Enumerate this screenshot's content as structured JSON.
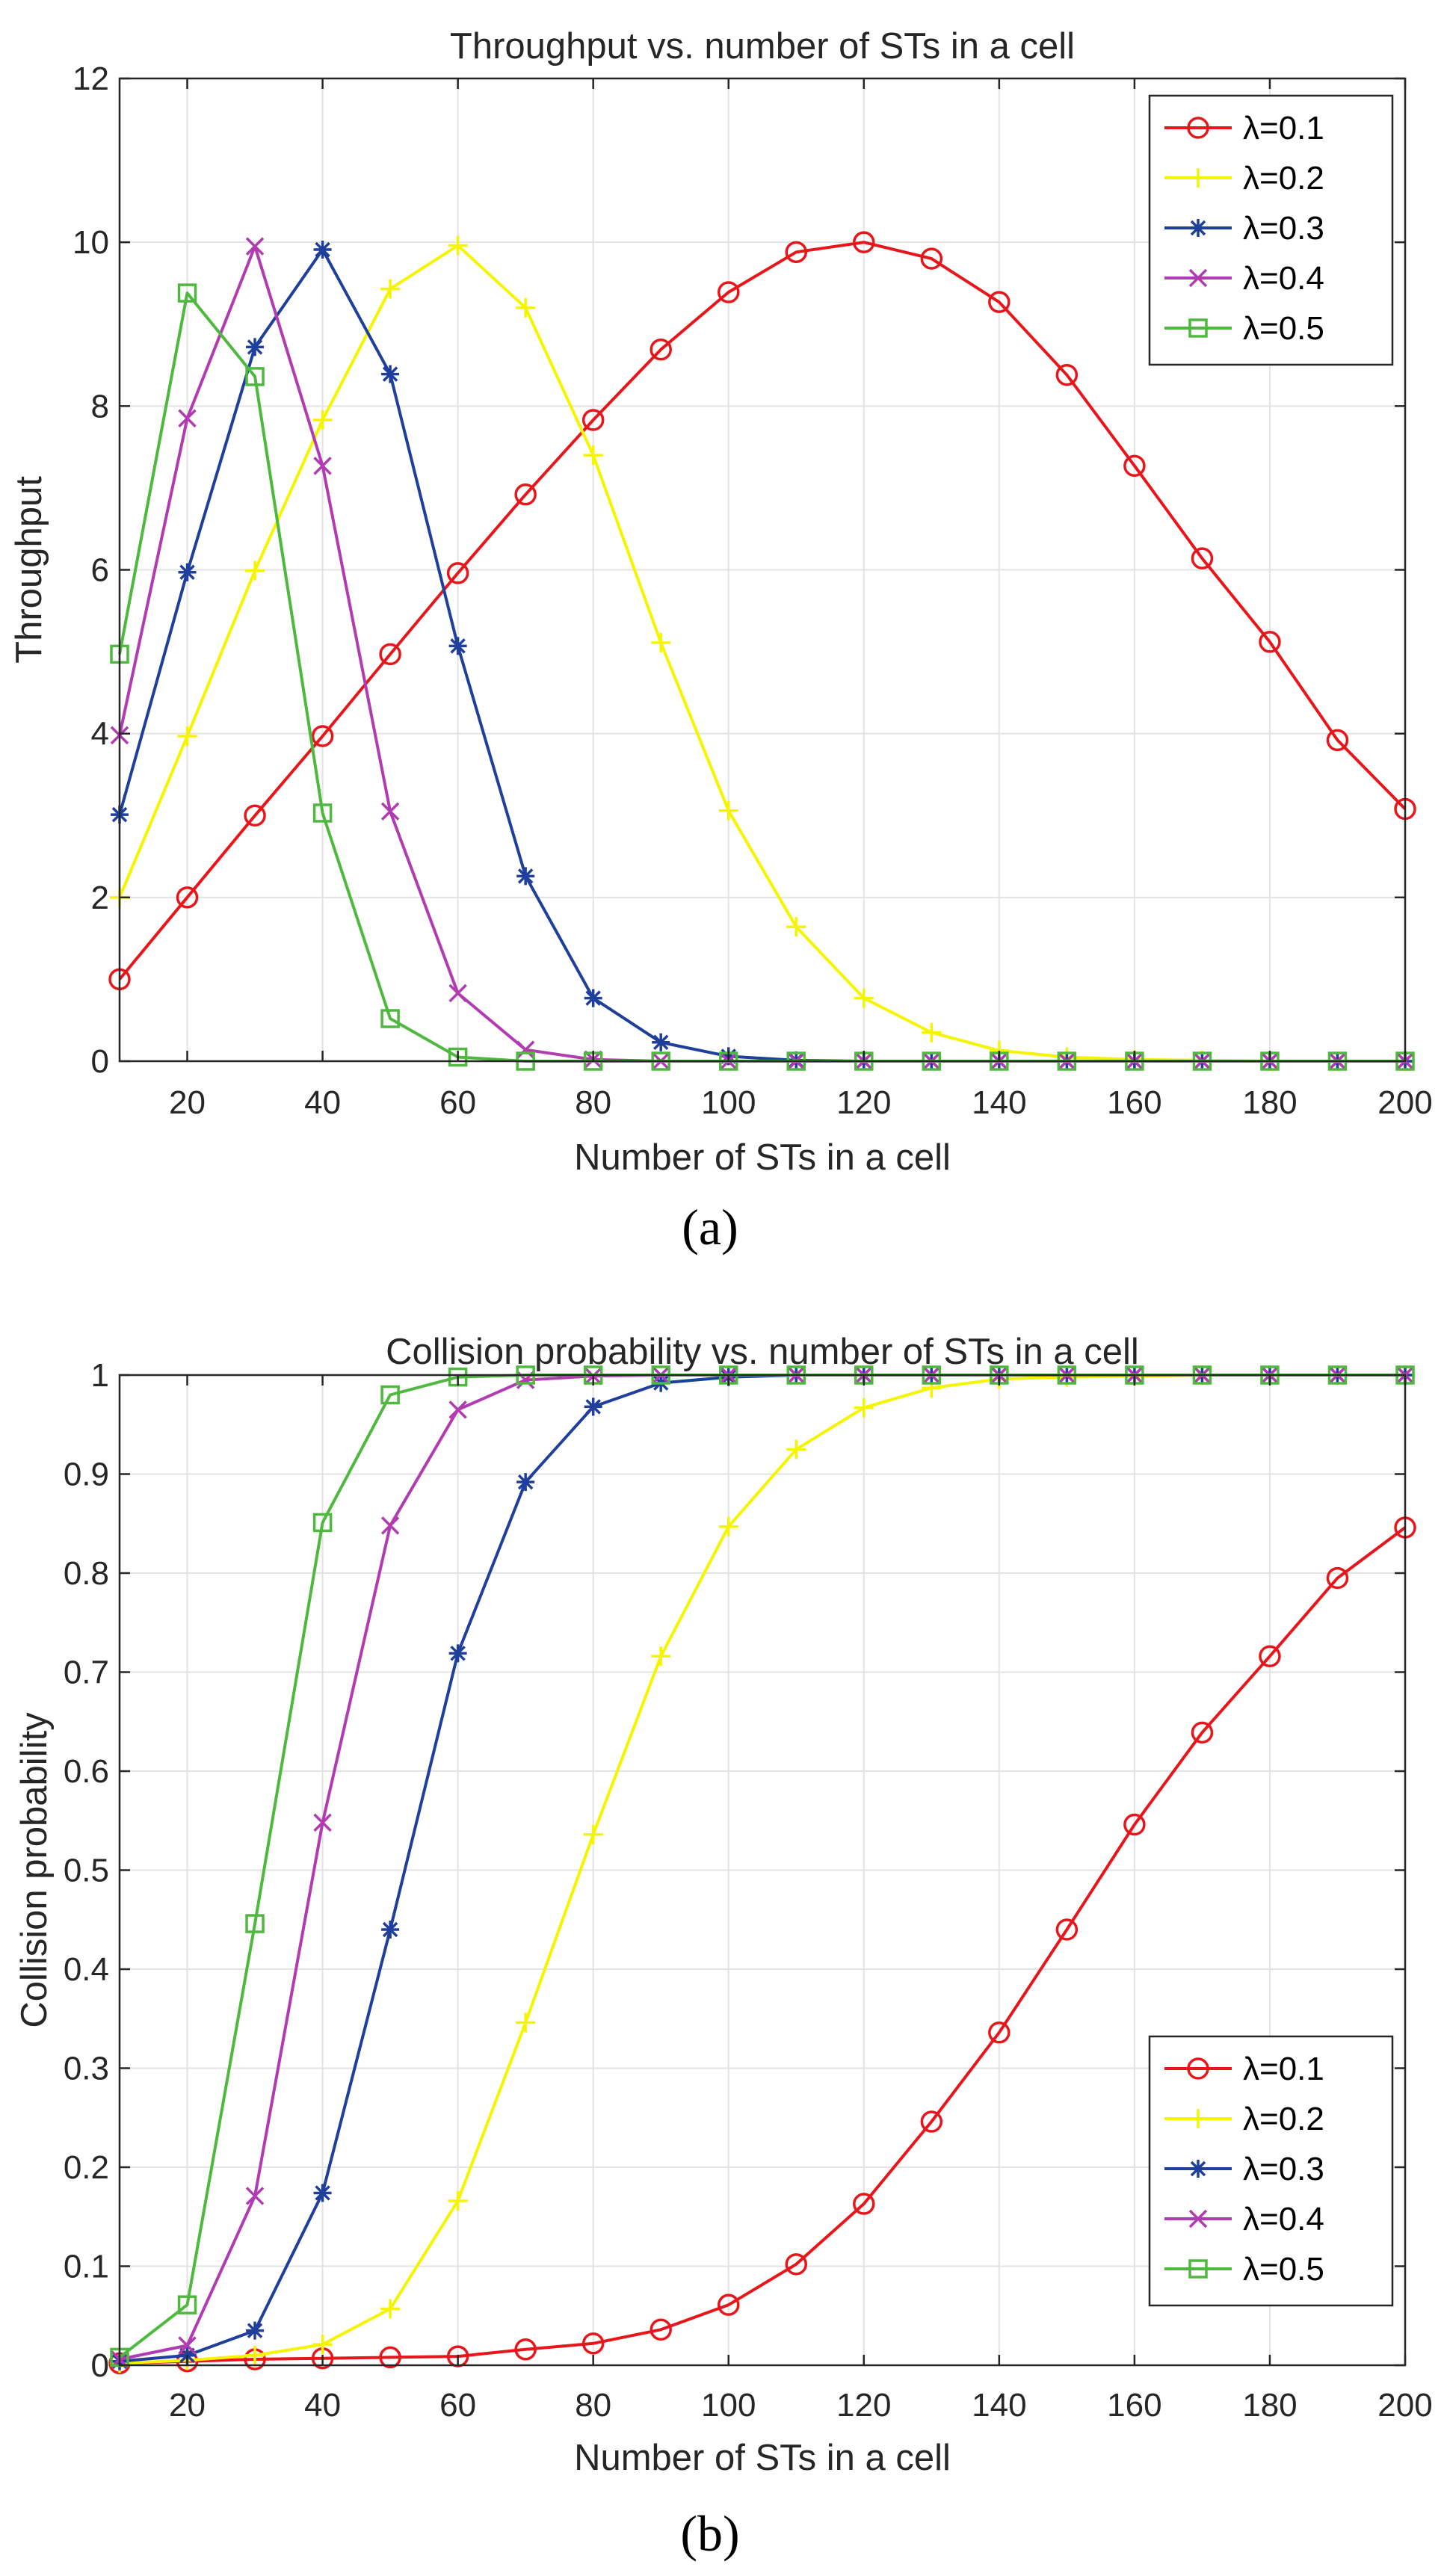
{
  "chart_data": [
    {
      "panel": "a",
      "type": "line",
      "title": "Throughput vs. number of STs in a cell",
      "xlabel": "Number of STs in a cell",
      "ylabel": "Throughput",
      "caption": "(a)",
      "xlim": [
        10,
        200
      ],
      "ylim": [
        0,
        12
      ],
      "xticks": [
        20,
        40,
        60,
        80,
        100,
        120,
        140,
        160,
        180,
        200
      ],
      "yticks": [
        0,
        2,
        4,
        6,
        8,
        10,
        12
      ],
      "ytick_labels": [
        "0",
        "2",
        "4",
        "6",
        "8",
        "10",
        "12"
      ],
      "grid": true,
      "legend_position": "top-right",
      "x": [
        10,
        20,
        30,
        40,
        50,
        60,
        70,
        80,
        90,
        100,
        110,
        120,
        130,
        140,
        150,
        160,
        170,
        180,
        190,
        200
      ],
      "series": [
        {
          "name": "λ=0.1",
          "color": "#e8151b",
          "marker": "circle",
          "values": [
            1.0,
            2.0,
            3.0,
            3.97,
            4.97,
            5.96,
            6.92,
            7.83,
            8.69,
            9.39,
            9.88,
            10.0,
            9.8,
            9.27,
            8.38,
            7.27,
            6.14,
            5.12,
            3.92,
            3.08
          ]
        },
        {
          "name": "λ=0.2",
          "color": "#f5f500",
          "marker": "plus",
          "values": [
            2.0,
            3.97,
            5.99,
            7.83,
            9.43,
            9.96,
            9.2,
            7.4,
            5.11,
            3.06,
            1.64,
            0.77,
            0.35,
            0.13,
            0.05,
            0.02,
            0.01,
            0.0,
            0.0,
            0.0
          ]
        },
        {
          "name": "λ=0.3",
          "color": "#1f3f9c",
          "marker": "asterisk",
          "values": [
            3.01,
            5.97,
            8.72,
            9.91,
            8.39,
            5.07,
            2.26,
            0.77,
            0.23,
            0.06,
            0.01,
            0.0,
            0.0,
            0.0,
            0.0,
            0.0,
            0.0,
            0.0,
            0.0,
            0.0
          ]
        },
        {
          "name": "λ=0.4",
          "color": "#b13cb1",
          "marker": "cross",
          "values": [
            3.98,
            7.85,
            9.95,
            7.27,
            3.05,
            0.83,
            0.14,
            0.02,
            0.0,
            0.0,
            0.0,
            0.0,
            0.0,
            0.0,
            0.0,
            0.0,
            0.0,
            0.0,
            0.0,
            0.0
          ]
        },
        {
          "name": "λ=0.5",
          "color": "#4fb83f",
          "marker": "square",
          "values": [
            4.97,
            9.38,
            8.36,
            3.03,
            0.52,
            0.05,
            0.0,
            0.0,
            0.0,
            0.0,
            0.0,
            0.0,
            0.0,
            0.0,
            0.0,
            0.0,
            0.0,
            0.0,
            0.0,
            0.0
          ]
        }
      ]
    },
    {
      "panel": "b",
      "type": "line",
      "title": "Collision probability vs. number of STs in a cell",
      "xlabel": "Number of STs in a cell",
      "ylabel": "Collision probability",
      "caption": "(b)",
      "xlim": [
        10,
        200
      ],
      "ylim": [
        0,
        1
      ],
      "xticks": [
        20,
        40,
        60,
        80,
        100,
        120,
        140,
        160,
        180,
        200
      ],
      "yticks": [
        0,
        0.1,
        0.2,
        0.3,
        0.4,
        0.5,
        0.6,
        0.7,
        0.8,
        0.9,
        1
      ],
      "ytick_labels": [
        "0",
        "0.1",
        "0.2",
        "0.3",
        "0.4",
        "0.5",
        "0.6",
        "0.7",
        "0.8",
        "0.9",
        "1"
      ],
      "grid": true,
      "legend_position": "bottom-right",
      "x": [
        10,
        20,
        30,
        40,
        50,
        60,
        70,
        80,
        90,
        100,
        110,
        120,
        130,
        140,
        150,
        160,
        170,
        180,
        190,
        200
      ],
      "series": [
        {
          "name": "λ=0.1",
          "color": "#e8151b",
          "marker": "circle",
          "values": [
            0.002,
            0.004,
            0.006,
            0.007,
            0.008,
            0.009,
            0.016,
            0.022,
            0.036,
            0.061,
            0.102,
            0.163,
            0.246,
            0.336,
            0.44,
            0.546,
            0.639,
            0.716,
            0.795,
            0.846
          ]
        },
        {
          "name": "λ=0.2",
          "color": "#f5f500",
          "marker": "plus",
          "values": [
            0.002,
            0.005,
            0.01,
            0.021,
            0.057,
            0.166,
            0.346,
            0.536,
            0.716,
            0.847,
            0.925,
            0.967,
            0.987,
            0.996,
            0.998,
            0.999,
            1.0,
            1.0,
            1.0,
            1.0
          ]
        },
        {
          "name": "λ=0.3",
          "color": "#1f3f9c",
          "marker": "asterisk",
          "values": [
            0.004,
            0.01,
            0.035,
            0.174,
            0.44,
            0.719,
            0.892,
            0.968,
            0.992,
            0.998,
            1.0,
            1.0,
            1.0,
            1.0,
            1.0,
            1.0,
            1.0,
            1.0,
            1.0,
            1.0
          ]
        },
        {
          "name": "λ=0.4",
          "color": "#b13cb1",
          "marker": "cross",
          "values": [
            0.006,
            0.02,
            0.171,
            0.548,
            0.848,
            0.965,
            0.995,
            0.999,
            1.0,
            1.0,
            1.0,
            1.0,
            1.0,
            1.0,
            1.0,
            1.0,
            1.0,
            1.0,
            1.0,
            1.0
          ]
        },
        {
          "name": "λ=0.5",
          "color": "#4fb83f",
          "marker": "square",
          "values": [
            0.008,
            0.061,
            0.446,
            0.851,
            0.98,
            0.998,
            1.0,
            1.0,
            1.0,
            1.0,
            1.0,
            1.0,
            1.0,
            1.0,
            1.0,
            1.0,
            1.0,
            1.0,
            1.0,
            1.0
          ]
        }
      ]
    }
  ]
}
